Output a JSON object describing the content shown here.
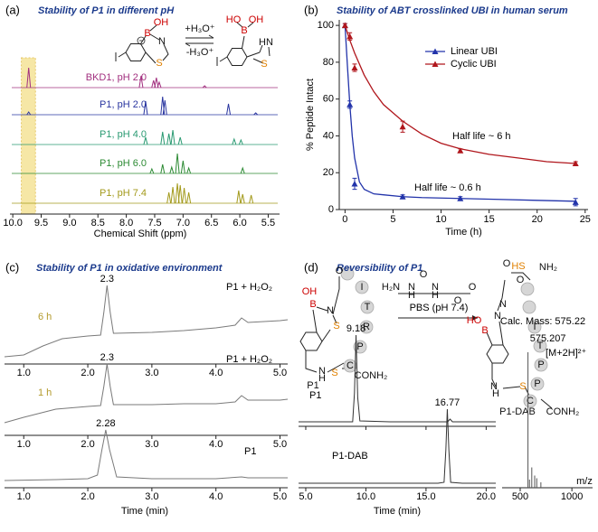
{
  "chart_data": [
    {
      "type": "nmr",
      "panel_label": "(a)",
      "title": "Stability of P1 in different pH",
      "xlabel": "Chemical Shift (ppm)",
      "xlim": [
        10.05,
        5.3
      ],
      "xticks": [
        {
          "value": 10,
          "label": "10.0"
        },
        9.5,
        {
          "value": 9,
          "label": "9.0"
        },
        8.5,
        {
          "value": 8,
          "label": "8.0"
        },
        7.5,
        {
          "value": 7,
          "label": "7.0"
        },
        6.5,
        {
          "value": 6,
          "label": "6.0"
        },
        5.5
      ],
      "highlight": [
        9.85,
        9.6
      ],
      "highlight_color": "#f6e7a6",
      "series": [
        {
          "name": "BKD1, pH 2.0",
          "color": "#a2307f",
          "x": [
            9.72,
            7.74,
            7.52,
            7.47,
            7.42,
            6.62
          ],
          "values": [
            22,
            13,
            8,
            11,
            6,
            2
          ]
        },
        {
          "name": "P1, pH 2.0",
          "color": "#2a36a0",
          "x": [
            9.72,
            7.66,
            7.36,
            7.32,
            6.2,
            5.72
          ],
          "values": [
            3,
            15,
            20,
            16,
            12,
            2
          ]
        },
        {
          "name": "P1, pH 4.0",
          "color": "#2a9a72",
          "x": [
            7.66,
            7.36,
            7.25,
            7.18,
            7.05,
            6.1,
            5.98
          ],
          "values": [
            8,
            14,
            12,
            16,
            8,
            6,
            5
          ]
        },
        {
          "name": "P1, pH 6.0",
          "color": "#2c8a33",
          "x": [
            7.55,
            7.36,
            7.2,
            7.1,
            7.0,
            6.9,
            5.95
          ],
          "values": [
            5,
            10,
            7,
            22,
            14,
            6,
            6
          ]
        },
        {
          "name": "P1, pH 7.4",
          "color": "#a39a1c",
          "x": [
            7.25,
            7.18,
            7.1,
            7.05,
            6.98,
            6.9,
            6.02,
            5.95,
            5.8
          ],
          "values": [
            12,
            18,
            22,
            20,
            17,
            12,
            14,
            10,
            9
          ]
        }
      ],
      "structure_labels": [
        "OH",
        "B",
        "N",
        "S",
        "+H₃O⁺",
        "-H₃O⁺",
        "HO",
        "OH",
        "B",
        "HN",
        "S"
      ]
    },
    {
      "type": "scatter",
      "panel_label": "(b)",
      "title": "Stability of ABT crosslinked UBI in human serum",
      "xlabel": "Time (h)",
      "ylabel": "% Peptide Intact",
      "xlim": [
        -0.6,
        25.3
      ],
      "ylim": [
        0,
        103
      ],
      "xticks": [
        0,
        5,
        10,
        15,
        20,
        25
      ],
      "yticks": [
        0,
        20,
        40,
        60,
        80,
        100
      ],
      "legend": "upper right",
      "annotations": [
        "Half life ~ 6 h",
        "Half life ~ 0.6 h"
      ],
      "series": [
        {
          "name": "Linear UBI",
          "color": "#2233aa",
          "x": [
            0,
            0.5,
            1,
            6,
            12,
            24
          ],
          "values": [
            100,
            57,
            14,
            7,
            6,
            4
          ],
          "errors": [
            1,
            2,
            3,
            1,
            1,
            2
          ],
          "curve_x": [
            0,
            0.25,
            0.5,
            0.75,
            1,
            1.5,
            2,
            3,
            4,
            6,
            8,
            12,
            16,
            20,
            24
          ],
          "curve_values": [
            100,
            78,
            57,
            40,
            28,
            15,
            11,
            8.5,
            8,
            7,
            6.5,
            6,
            5.5,
            5,
            4.5
          ]
        },
        {
          "name": "Cyclic UBI",
          "color": "#b0161c",
          "x": [
            0,
            0.5,
            1,
            6,
            12,
            24
          ],
          "values": [
            100,
            94,
            77,
            45,
            32,
            25
          ],
          "errors": [
            1,
            2,
            2,
            3,
            1,
            1
          ],
          "curve_x": [
            0,
            0.5,
            1,
            2,
            3,
            4,
            6,
            8,
            10,
            12,
            15,
            18,
            21,
            24
          ],
          "curve_values": [
            100,
            92,
            85,
            73,
            64,
            57,
            48,
            41,
            36,
            33,
            30,
            28,
            26,
            25
          ]
        }
      ]
    },
    {
      "type": "chromatogram",
      "panel_label": "(c)",
      "title": "Stability of P1 in oxidative environment",
      "xlabel": "Time (min)",
      "xlim": [
        0.7,
        5.12
      ],
      "xticks": [
        {
          "value": 1,
          "label": "1.0"
        },
        {
          "value": 2,
          "label": "2.0"
        },
        {
          "value": 3,
          "label": "3.0"
        },
        {
          "value": 4,
          "label": "4.0"
        },
        {
          "value": 5,
          "label": "5.0"
        }
      ],
      "color": "#7a7a7a",
      "name_color": "#b39a2c",
      "traces": [
        {
          "name": "6 h",
          "annotation": "P1 + H₂O₂",
          "peak": 2.3,
          "x": [
            0.7,
            1.0,
            1.3,
            1.6,
            2.0,
            2.2,
            2.25,
            2.3,
            2.35,
            2.4,
            3.0,
            3.5,
            4.0,
            4.3,
            4.4,
            4.5,
            5.0,
            5.12
          ],
          "values": [
            6,
            8,
            18,
            26,
            29,
            30,
            55,
            85,
            55,
            32,
            33,
            35,
            38,
            41,
            49,
            44,
            46,
            47
          ]
        },
        {
          "name": "1 h",
          "annotation": "P1 + H₂O₂",
          "peak": 2.3,
          "x": [
            0.7,
            1.0,
            1.5,
            2.0,
            2.2,
            2.25,
            2.3,
            2.35,
            2.4,
            3.0,
            3.5,
            4.0,
            4.3,
            4.4,
            4.5,
            5.0,
            5.12
          ],
          "values": [
            12,
            18,
            27,
            30,
            31,
            52,
            77,
            52,
            32,
            32,
            33,
            33,
            35,
            42,
            37,
            37,
            38
          ]
        },
        {
          "annotation": "P1",
          "peak": 2.28,
          "x": [
            0.7,
            1.5,
            2.0,
            2.15,
            2.22,
            2.28,
            2.34,
            2.45,
            3.0,
            4.0,
            4.4,
            4.5,
            5.12
          ],
          "values": [
            6,
            7,
            8,
            12,
            40,
            62,
            40,
            10,
            8,
            8,
            10,
            9,
            9
          ]
        }
      ]
    },
    {
      "type": "chromatogram",
      "panel_label": "(d)",
      "title": "Reversibility of P1",
      "xlabel": "Time (min)",
      "xlim": [
        4.4,
        20.8
      ],
      "xticks": [
        {
          "value": 5,
          "label": "5.0"
        },
        {
          "value": 10,
          "label": "10.0"
        },
        {
          "value": 15,
          "label": "15.0"
        },
        {
          "value": 20,
          "label": "20.0"
        }
      ],
      "color": "#333333",
      "traces": [
        {
          "annotation": "P1",
          "peak": 9.18,
          "x": [
            4.4,
            6,
            8,
            8.9,
            9.05,
            9.18,
            9.32,
            9.5,
            12,
            16,
            16.8,
            17.0,
            17.2,
            20,
            20.8
          ],
          "values": [
            3,
            3,
            3,
            3,
            35,
            99,
            30,
            4,
            3,
            3,
            3,
            6,
            3,
            3,
            3
          ]
        },
        {
          "annotation": "P1-DAB",
          "peak": 16.77,
          "x": [
            4.4,
            8,
            12,
            16,
            16.5,
            16.65,
            16.77,
            16.9,
            17.05,
            18,
            20.8
          ],
          "values": [
            3,
            3,
            3,
            3,
            4,
            40,
            85,
            40,
            4,
            3,
            3
          ]
        }
      ],
      "arrow_label": "PBS (pH 7.4)",
      "structure_labels": [
        "OH",
        "B",
        "N",
        "S",
        "O",
        "I",
        "T",
        "R",
        "P",
        "C",
        "S",
        "CONH₂",
        "N",
        "H",
        "P1",
        "H₂N",
        "N",
        "H",
        "N",
        "H",
        "O",
        "O",
        "O",
        "O",
        "O",
        "HS",
        "NH₂",
        "HO",
        "B",
        "N",
        "N",
        "I",
        "T",
        "P",
        "P",
        "C",
        "S",
        "N",
        "H",
        "CONH₂",
        "P1-DAB"
      ]
    },
    {
      "type": "mass_spectrum",
      "xlabel": "m/z",
      "xlim": [
        325,
        1200
      ],
      "xticks": [
        500,
        1000
      ],
      "color": "#555555",
      "x": [
        575.207,
        590,
        612,
        640,
        660,
        700
      ],
      "values": [
        100,
        6,
        15,
        9,
        7,
        4
      ],
      "peak": 575.207,
      "annotations": [
        "Calc. Mass: 575.22",
        "[M+2H]²⁺"
      ]
    }
  ]
}
